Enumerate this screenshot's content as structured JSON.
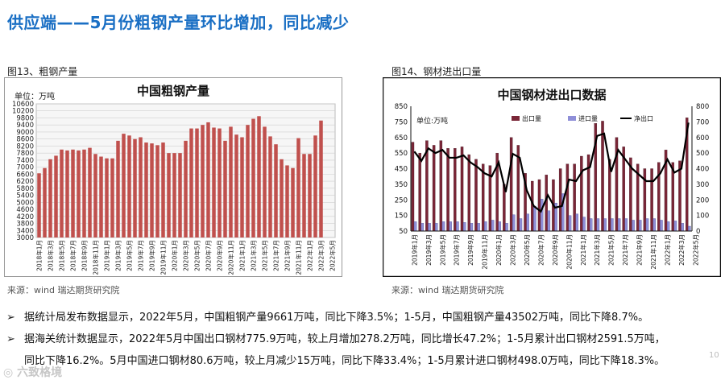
{
  "page": {
    "title": "供应端——5月份粗钢产量环比增加，同比减少",
    "page_number": "10",
    "watermark": "六致格境"
  },
  "figure1": {
    "label": "图13、粗钢产量",
    "source": "来源：wind   瑞达期货研究院"
  },
  "figure2": {
    "label": "图14、钢材进出口量",
    "source": "来源：wind   瑞达期货研究院"
  },
  "bullets": [
    {
      "text": "据统计局发布数据显示，2022年5月，中国粗钢产量9661万吨，同比下降3.5%；1-5月，中国粗钢产量43502万吨，同比下降8.7%。"
    },
    {
      "text": "据海关统计数据显示，2022年5月中国出口钢材775.9万吨，较上月增加278.2万吨，同比增长47.2%；1-5月累计出口钢材2591.5万吨，",
      "cont": "同比下降16.2%。5月中国进口钢材80.6万吨，较上月减少15万吨，同比下降33.4%；1-5月累计进口钢材498.0万吨，同比下降18.3%。"
    }
  ],
  "chart_data": [
    {
      "type": "bar",
      "title": "中国粗钢产量",
      "unit_label": "单位：万吨",
      "ylim": [
        3000,
        10600
      ],
      "yticks": [
        3000,
        3400,
        3800,
        4200,
        4600,
        5000,
        5400,
        5800,
        6200,
        6600,
        7000,
        7400,
        7800,
        8200,
        8600,
        9000,
        9400,
        9800,
        10200,
        10600
      ],
      "bar_color": "#c0504d",
      "categories": [
        "2018年1月",
        "2018年2月",
        "2018年3月",
        "2018年4月",
        "2018年5月",
        "2018年6月",
        "2018年7月",
        "2018年8月",
        "2018年9月",
        "2018年10月",
        "2018年11月",
        "2018年12月",
        "2019年1月",
        "2019年2月",
        "2019年3月",
        "2019年4月",
        "2019年5月",
        "2019年6月",
        "2019年7月",
        "2019年8月",
        "2019年9月",
        "2019年10月",
        "2019年11月",
        "2019年12月",
        "2020年1月",
        "2020年2月",
        "2020年3月",
        "2020年4月",
        "2020年5月",
        "2020年6月",
        "2020年7月",
        "2020年8月",
        "2020年9月",
        "2020年10月",
        "2020年11月",
        "2020年12月",
        "2021年1月",
        "2021年2月",
        "2021年3月",
        "2021年4月",
        "2021年5月",
        "2021年6月",
        "2021年7月",
        "2021年8月",
        "2021年9月",
        "2021年10月",
        "2021年11月",
        "2021年12月",
        "2022年1月",
        "2022年2月",
        "2022年3月",
        "2022年4月",
        "2022年5月"
      ],
      "tick_labels": [
        "2018年1月",
        "2018年3月",
        "2018年5月",
        "2018年7月",
        "2018年9月",
        "2018年11月",
        "2019年1月",
        "2019年3月",
        "2019年5月",
        "2019年7月",
        "2019年9月",
        "2019年11月",
        "2020年1月",
        "2020年3月",
        "2020年5月",
        "2020年7月",
        "2020年9月",
        "2020年11月",
        "2021年1月",
        "2021年3月",
        "2021年5月",
        "2021年7月",
        "2021年9月",
        "2021年11月",
        "2022年1月",
        "2022年3月",
        "2022年5月"
      ],
      "values": [
        6650,
        6950,
        7450,
        7650,
        8000,
        7950,
        8000,
        7950,
        8000,
        8100,
        7750,
        7600,
        7500,
        7500,
        8500,
        8900,
        8800,
        8600,
        8700,
        8400,
        8350,
        8250,
        8400,
        7800,
        7800,
        7800,
        8500,
        9200,
        9200,
        9400,
        9550,
        9250,
        9200,
        8500,
        9300,
        8850,
        8700,
        9400,
        9750,
        9900,
        9300,
        8750,
        8300,
        7450,
        7100,
        6950,
        8650,
        7750,
        7750,
        8800,
        9650,
        null,
        null
      ]
    },
    {
      "type": "bar+line",
      "title": "中国钢材进出口数据",
      "unit_label": "单位:万吨",
      "ylim_left": [
        50,
        850
      ],
      "yticks_left": [
        50,
        150,
        250,
        350,
        450,
        550,
        650,
        750,
        850
      ],
      "ylim_right": [
        0,
        800
      ],
      "yticks_right": [
        0,
        100,
        200,
        300,
        400,
        500,
        600,
        700,
        800
      ],
      "legend": [
        "出口量",
        "进口量",
        "净出口"
      ],
      "colors": {
        "export": "#7a2637",
        "import": "#8f8fd8",
        "net": "#000000"
      },
      "tick_labels": [
        "2019年1月",
        "2019年3月",
        "2019年5月",
        "2019年7月",
        "2019年9月",
        "2019年11月",
        "2020年1月",
        "2020年3月",
        "2020年5月",
        "2020年7月",
        "2020年9月",
        "2020年11月",
        "2021年1月",
        "2021年3月",
        "2021年5月",
        "2021年7月",
        "2021年9月",
        "2021年11月",
        "2022年1月",
        "2022年3月",
        "2022年5月"
      ],
      "series": [
        {
          "name": "出口量",
          "values": [
            620,
            550,
            630,
            600,
            630,
            580,
            580,
            590,
            540,
            510,
            480,
            470,
            550,
            350,
            650,
            600,
            420,
            370,
            380,
            410,
            380,
            450,
            480,
            480,
            530,
            540,
            740,
            755,
            510,
            650,
            590,
            520,
            480,
            450,
            450,
            490,
            570,
            490,
            500,
            776
          ]
        },
        {
          "name": "进口量",
          "values": [
            110,
            100,
            100,
            100,
            110,
            110,
            110,
            105,
            100,
            100,
            110,
            120,
            110,
            100,
            155,
            130,
            160,
            210,
            255,
            180,
            230,
            290,
            150,
            160,
            140,
            130,
            130,
            130,
            130,
            130,
            130,
            120,
            120,
            130,
            130,
            120,
            110,
            115,
            100,
            81
          ]
        },
        {
          "name": "净出口",
          "values": [
            510,
            450,
            530,
            500,
            520,
            470,
            470,
            485,
            440,
            410,
            370,
            350,
            440,
            250,
            495,
            470,
            260,
            160,
            125,
            230,
            150,
            160,
            330,
            320,
            390,
            410,
            610,
            625,
            380,
            520,
            460,
            400,
            360,
            320,
            320,
            370,
            460,
            375,
            400,
            695
          ]
        }
      ]
    }
  ]
}
